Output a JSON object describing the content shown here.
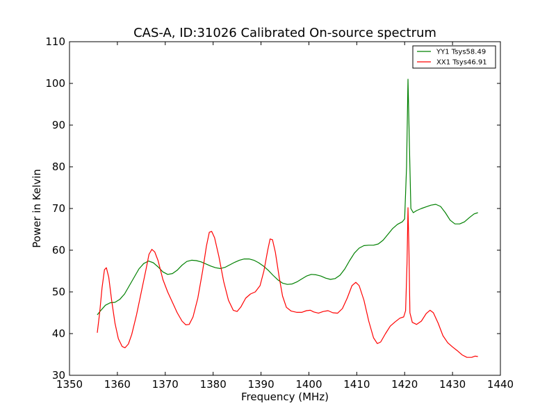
{
  "chart_data": {
    "type": "line",
    "title": "CAS-A, ID:31026 Calibrated On-source spectrum",
    "xlabel": "Frequency (MHz)",
    "ylabel": "Power in Kelvin",
    "xlim": [
      1350,
      1440
    ],
    "ylim": [
      30,
      110
    ],
    "xticks": [
      1350,
      1360,
      1370,
      1380,
      1390,
      1400,
      1410,
      1420,
      1430,
      1440
    ],
    "yticks": [
      30,
      40,
      50,
      60,
      70,
      80,
      90,
      100,
      110
    ],
    "grid": false,
    "legend_position": "top-right",
    "series": [
      {
        "name": "YY1 Tsys58.49",
        "color": "#008000",
        "points": [
          [
            1355.8,
            44.5
          ],
          [
            1356.5,
            45.5
          ],
          [
            1357.5,
            46.8
          ],
          [
            1358.5,
            47.4
          ],
          [
            1359.5,
            47.5
          ],
          [
            1360.5,
            48.2
          ],
          [
            1361.5,
            49.5
          ],
          [
            1362.5,
            51.5
          ],
          [
            1363.5,
            53.5
          ],
          [
            1364.5,
            55.5
          ],
          [
            1365.5,
            56.8
          ],
          [
            1366.5,
            57.4
          ],
          [
            1367.5,
            57.0
          ],
          [
            1368.5,
            56.0
          ],
          [
            1369.5,
            54.8
          ],
          [
            1370.5,
            54.2
          ],
          [
            1371.5,
            54.4
          ],
          [
            1372.5,
            55.2
          ],
          [
            1373.5,
            56.4
          ],
          [
            1374.5,
            57.3
          ],
          [
            1375.5,
            57.6
          ],
          [
            1376.5,
            57.5
          ],
          [
            1377.5,
            57.2
          ],
          [
            1378.5,
            56.7
          ],
          [
            1379.5,
            56.2
          ],
          [
            1380.5,
            55.8
          ],
          [
            1381.5,
            55.6
          ],
          [
            1382.5,
            55.9
          ],
          [
            1383.5,
            56.5
          ],
          [
            1384.5,
            57.1
          ],
          [
            1385.5,
            57.6
          ],
          [
            1386.5,
            57.9
          ],
          [
            1387.5,
            57.9
          ],
          [
            1388.5,
            57.6
          ],
          [
            1389.5,
            57.0
          ],
          [
            1390.5,
            56.2
          ],
          [
            1391.5,
            55.2
          ],
          [
            1392.5,
            54.0
          ],
          [
            1393.5,
            52.9
          ],
          [
            1394.5,
            52.1
          ],
          [
            1395.5,
            51.8
          ],
          [
            1396.5,
            51.9
          ],
          [
            1397.5,
            52.4
          ],
          [
            1398.5,
            53.1
          ],
          [
            1399.5,
            53.8
          ],
          [
            1400.5,
            54.2
          ],
          [
            1401.5,
            54.1
          ],
          [
            1402.5,
            53.8
          ],
          [
            1403.5,
            53.3
          ],
          [
            1404.5,
            53.0
          ],
          [
            1405.5,
            53.2
          ],
          [
            1406.5,
            54.0
          ],
          [
            1407.5,
            55.5
          ],
          [
            1408.5,
            57.5
          ],
          [
            1409.5,
            59.3
          ],
          [
            1410.5,
            60.5
          ],
          [
            1411.5,
            61.1
          ],
          [
            1412.5,
            61.2
          ],
          [
            1413.5,
            61.2
          ],
          [
            1414.5,
            61.5
          ],
          [
            1415.5,
            62.4
          ],
          [
            1416.5,
            63.8
          ],
          [
            1417.5,
            65.2
          ],
          [
            1418.5,
            66.2
          ],
          [
            1419.5,
            66.8
          ],
          [
            1420.0,
            67.5
          ],
          [
            1420.4,
            80.0
          ],
          [
            1420.7,
            101.0
          ],
          [
            1421.0,
            85.0
          ],
          [
            1421.3,
            70.0
          ],
          [
            1421.8,
            69.0
          ],
          [
            1422.5,
            69.5
          ],
          [
            1423.5,
            70.0
          ],
          [
            1424.5,
            70.4
          ],
          [
            1425.5,
            70.8
          ],
          [
            1426.5,
            71.0
          ],
          [
            1427.5,
            70.5
          ],
          [
            1428.5,
            69.0
          ],
          [
            1429.5,
            67.2
          ],
          [
            1430.5,
            66.3
          ],
          [
            1431.5,
            66.3
          ],
          [
            1432.5,
            66.8
          ],
          [
            1433.5,
            67.8
          ],
          [
            1434.5,
            68.7
          ],
          [
            1435.3,
            69.0
          ]
        ]
      },
      {
        "name": "XX1 Tsys46.91",
        "color": "#ff0000",
        "points": [
          [
            1355.8,
            40.2
          ],
          [
            1356.3,
            45.0
          ],
          [
            1356.8,
            51.0
          ],
          [
            1357.3,
            55.3
          ],
          [
            1357.7,
            55.8
          ],
          [
            1358.2,
            53.5
          ],
          [
            1358.8,
            48.0
          ],
          [
            1359.5,
            42.5
          ],
          [
            1360.2,
            38.8
          ],
          [
            1361.0,
            36.9
          ],
          [
            1361.6,
            36.6
          ],
          [
            1362.3,
            37.5
          ],
          [
            1363.0,
            39.8
          ],
          [
            1364.0,
            44.5
          ],
          [
            1365.0,
            50.0
          ],
          [
            1366.0,
            55.5
          ],
          [
            1366.6,
            59.0
          ],
          [
            1367.2,
            60.2
          ],
          [
            1367.8,
            59.6
          ],
          [
            1368.5,
            57.5
          ],
          [
            1369.5,
            53.0
          ],
          [
            1370.5,
            50.0
          ],
          [
            1371.5,
            47.5
          ],
          [
            1372.5,
            45.0
          ],
          [
            1373.5,
            43.0
          ],
          [
            1374.3,
            42.1
          ],
          [
            1375.0,
            42.2
          ],
          [
            1375.8,
            44.0
          ],
          [
            1376.8,
            48.5
          ],
          [
            1377.8,
            55.0
          ],
          [
            1378.6,
            61.0
          ],
          [
            1379.2,
            64.3
          ],
          [
            1379.7,
            64.5
          ],
          [
            1380.3,
            63.0
          ],
          [
            1381.2,
            58.5
          ],
          [
            1382.2,
            52.5
          ],
          [
            1383.2,
            48.0
          ],
          [
            1384.2,
            45.6
          ],
          [
            1385.0,
            45.3
          ],
          [
            1385.8,
            46.4
          ],
          [
            1386.8,
            48.5
          ],
          [
            1387.8,
            49.5
          ],
          [
            1388.8,
            50.0
          ],
          [
            1389.8,
            51.5
          ],
          [
            1390.6,
            55.0
          ],
          [
            1391.4,
            60.0
          ],
          [
            1391.9,
            62.7
          ],
          [
            1392.4,
            62.5
          ],
          [
            1393.0,
            59.5
          ],
          [
            1393.8,
            53.5
          ],
          [
            1394.5,
            49.0
          ],
          [
            1395.3,
            46.3
          ],
          [
            1396.3,
            45.4
          ],
          [
            1397.5,
            45.1
          ],
          [
            1398.5,
            45.1
          ],
          [
            1399.5,
            45.5
          ],
          [
            1400.3,
            45.6
          ],
          [
            1401.0,
            45.2
          ],
          [
            1402.0,
            44.9
          ],
          [
            1403.0,
            45.3
          ],
          [
            1404.0,
            45.5
          ],
          [
            1405.0,
            45.0
          ],
          [
            1406.0,
            44.9
          ],
          [
            1407.0,
            46.0
          ],
          [
            1408.0,
            48.5
          ],
          [
            1409.0,
            51.5
          ],
          [
            1409.8,
            52.3
          ],
          [
            1410.5,
            51.5
          ],
          [
            1411.5,
            48.0
          ],
          [
            1412.5,
            43.0
          ],
          [
            1413.5,
            39.0
          ],
          [
            1414.3,
            37.6
          ],
          [
            1415.0,
            38.0
          ],
          [
            1416.0,
            40.0
          ],
          [
            1417.0,
            41.8
          ],
          [
            1418.0,
            42.8
          ],
          [
            1419.0,
            43.7
          ],
          [
            1419.8,
            44.0
          ],
          [
            1420.2,
            45.5
          ],
          [
            1420.5,
            57.0
          ],
          [
            1420.7,
            70.2
          ],
          [
            1420.9,
            60.0
          ],
          [
            1421.1,
            45.0
          ],
          [
            1421.6,
            42.7
          ],
          [
            1422.5,
            42.2
          ],
          [
            1423.5,
            43.0
          ],
          [
            1424.5,
            44.8
          ],
          [
            1425.3,
            45.6
          ],
          [
            1426.0,
            45.0
          ],
          [
            1427.0,
            42.5
          ],
          [
            1428.0,
            39.5
          ],
          [
            1429.0,
            37.8
          ],
          [
            1430.0,
            36.8
          ],
          [
            1431.0,
            35.9
          ],
          [
            1432.0,
            34.9
          ],
          [
            1433.0,
            34.3
          ],
          [
            1434.0,
            34.3
          ],
          [
            1434.7,
            34.6
          ],
          [
            1435.3,
            34.5
          ]
        ]
      }
    ]
  }
}
